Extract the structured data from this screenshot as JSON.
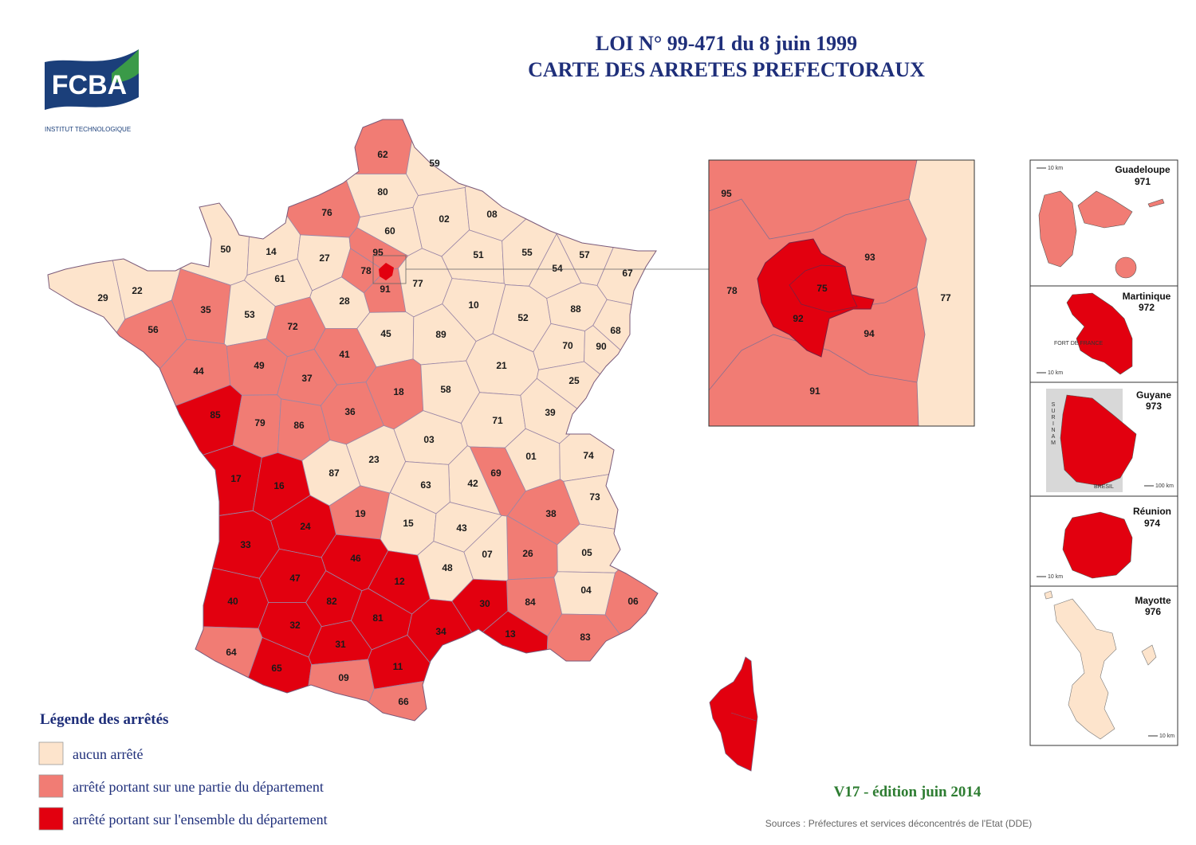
{
  "header": {
    "title_line1": "LOI  N° 99-471 du 8 juin 1999",
    "title_line2": "CARTE DES ARRETES PREFECTORAUX"
  },
  "logo": {
    "name": "FCBA",
    "subtitle": "INSTITUT  TECHNOLOGIQUE"
  },
  "legend": {
    "title": "Légende des arrêtés",
    "items": [
      {
        "label": "aucun arrêté",
        "color": "#fde4cc"
      },
      {
        "label": "arrêté portant sur une partie du département",
        "color": "#f17c74"
      },
      {
        "label": "arrêté portant sur l'ensemble du département",
        "color": "#e2000f"
      }
    ]
  },
  "departments": [
    {
      "code": "62",
      "color": "#f17c74"
    },
    {
      "code": "59",
      "color": "#fde4cc"
    },
    {
      "code": "80",
      "color": "#fde4cc"
    },
    {
      "code": "76",
      "color": "#f17c74"
    },
    {
      "code": "02",
      "color": "#fde4cc"
    },
    {
      "code": "08",
      "color": "#fde4cc"
    },
    {
      "code": "60",
      "color": "#fde4cc"
    },
    {
      "code": "50",
      "color": "#fde4cc"
    },
    {
      "code": "14",
      "color": "#fde4cc"
    },
    {
      "code": "27",
      "color": "#fde4cc"
    },
    {
      "code": "95",
      "color": "#f17c74"
    },
    {
      "code": "78",
      "color": "#f17c74"
    },
    {
      "code": "91",
      "color": "#f17c74"
    },
    {
      "code": "77",
      "color": "#fde4cc"
    },
    {
      "code": "51",
      "color": "#fde4cc"
    },
    {
      "code": "55",
      "color": "#fde4cc"
    },
    {
      "code": "57",
      "color": "#fde4cc"
    },
    {
      "code": "54",
      "color": "#fde4cc"
    },
    {
      "code": "67",
      "color": "#fde4cc"
    },
    {
      "code": "29",
      "color": "#fde4cc"
    },
    {
      "code": "22",
      "color": "#fde4cc"
    },
    {
      "code": "61",
      "color": "#fde4cc"
    },
    {
      "code": "28",
      "color": "#fde4cc"
    },
    {
      "code": "35",
      "color": "#f17c74"
    },
    {
      "code": "53",
      "color": "#fde4cc"
    },
    {
      "code": "72",
      "color": "#f17c74"
    },
    {
      "code": "56",
      "color": "#f17c74"
    },
    {
      "code": "10",
      "color": "#fde4cc"
    },
    {
      "code": "52",
      "color": "#fde4cc"
    },
    {
      "code": "88",
      "color": "#fde4cc"
    },
    {
      "code": "68",
      "color": "#fde4cc"
    },
    {
      "code": "45",
      "color": "#fde4cc"
    },
    {
      "code": "89",
      "color": "#fde4cc"
    },
    {
      "code": "41",
      "color": "#f17c74"
    },
    {
      "code": "44",
      "color": "#f17c74"
    },
    {
      "code": "49",
      "color": "#f17c74"
    },
    {
      "code": "37",
      "color": "#f17c74"
    },
    {
      "code": "70",
      "color": "#fde4cc"
    },
    {
      "code": "90",
      "color": "#fde4cc"
    },
    {
      "code": "21",
      "color": "#fde4cc"
    },
    {
      "code": "25",
      "color": "#fde4cc"
    },
    {
      "code": "18",
      "color": "#f17c74"
    },
    {
      "code": "58",
      "color": "#fde4cc"
    },
    {
      "code": "85",
      "color": "#e2000f"
    },
    {
      "code": "79",
      "color": "#f17c74"
    },
    {
      "code": "86",
      "color": "#f17c74"
    },
    {
      "code": "36",
      "color": "#f17c74"
    },
    {
      "code": "71",
      "color": "#fde4cc"
    },
    {
      "code": "39",
      "color": "#fde4cc"
    },
    {
      "code": "03",
      "color": "#fde4cc"
    },
    {
      "code": "01",
      "color": "#fde4cc"
    },
    {
      "code": "74",
      "color": "#fde4cc"
    },
    {
      "code": "87",
      "color": "#fde4cc"
    },
    {
      "code": "23",
      "color": "#fde4cc"
    },
    {
      "code": "17",
      "color": "#e2000f"
    },
    {
      "code": "16",
      "color": "#e2000f"
    },
    {
      "code": "69",
      "color": "#f17c74"
    },
    {
      "code": "42",
      "color": "#fde4cc"
    },
    {
      "code": "63",
      "color": "#fde4cc"
    },
    {
      "code": "73",
      "color": "#fde4cc"
    },
    {
      "code": "38",
      "color": "#f17c74"
    },
    {
      "code": "19",
      "color": "#f17c74"
    },
    {
      "code": "24",
      "color": "#e2000f"
    },
    {
      "code": "15",
      "color": "#fde4cc"
    },
    {
      "code": "43",
      "color": "#fde4cc"
    },
    {
      "code": "26",
      "color": "#f17c74"
    },
    {
      "code": "05",
      "color": "#fde4cc"
    },
    {
      "code": "33",
      "color": "#e2000f"
    },
    {
      "code": "46",
      "color": "#e2000f"
    },
    {
      "code": "07",
      "color": "#fde4cc"
    },
    {
      "code": "48",
      "color": "#fde4cc"
    },
    {
      "code": "47",
      "color": "#e2000f"
    },
    {
      "code": "12",
      "color": "#e2000f"
    },
    {
      "code": "04",
      "color": "#fde4cc"
    },
    {
      "code": "40",
      "color": "#e2000f"
    },
    {
      "code": "82",
      "color": "#e2000f"
    },
    {
      "code": "84",
      "color": "#f17c74"
    },
    {
      "code": "30",
      "color": "#e2000f"
    },
    {
      "code": "06",
      "color": "#f17c74"
    },
    {
      "code": "81",
      "color": "#e2000f"
    },
    {
      "code": "32",
      "color": "#e2000f"
    },
    {
      "code": "34",
      "color": "#e2000f"
    },
    {
      "code": "13",
      "color": "#e2000f"
    },
    {
      "code": "83",
      "color": "#f17c74"
    },
    {
      "code": "64",
      "color": "#f17c74"
    },
    {
      "code": "31",
      "color": "#e2000f"
    },
    {
      "code": "11",
      "color": "#e2000f"
    },
    {
      "code": "65",
      "color": "#e2000f"
    },
    {
      "code": "09",
      "color": "#f17c74"
    },
    {
      "code": "66",
      "color": "#f17c74"
    }
  ],
  "paris_inset": {
    "labels": [
      "95",
      "93",
      "78",
      "75",
      "92",
      "94",
      "91",
      "77"
    ]
  },
  "overseas": [
    {
      "name": "Guadeloupe",
      "code": "971",
      "color": "#f17c74",
      "scale": "10 km"
    },
    {
      "name": "Martinique",
      "code": "972",
      "color": "#e2000f",
      "scale": "10 km",
      "place": "FORT DE FRANCE"
    },
    {
      "name": "Guyane",
      "code": "973",
      "color": "#e2000f",
      "scale": "100 km",
      "neighbours": [
        "SURINAM",
        "BRESIL"
      ]
    },
    {
      "name": "Réunion",
      "code": "974",
      "color": "#e2000f",
      "scale": "10 km"
    },
    {
      "name": "Mayotte",
      "code": "976",
      "color": "#fde4cc",
      "scale": "10 km"
    }
  ],
  "version": "V17  -  édition juin 2014",
  "sources": "Sources : Préfectures et services déconcentrés de l'Etat (DDE)"
}
